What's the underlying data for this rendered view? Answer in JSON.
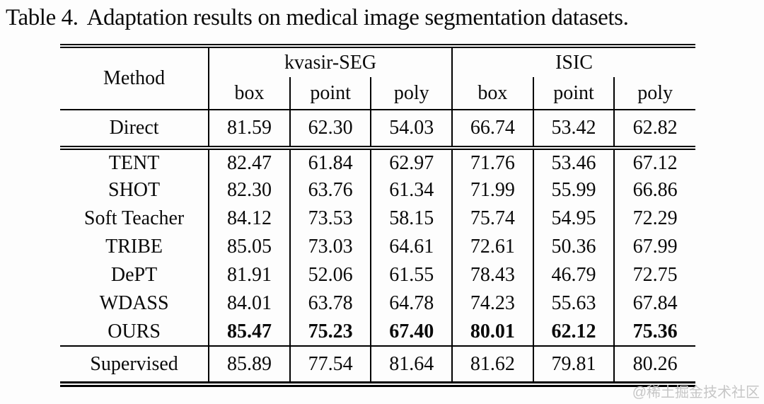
{
  "page": {
    "title_label": "Table 4.",
    "title_caption": "Adaptation results on medical image segmentation datasets.",
    "watermark": "@稀土掘金技术社区"
  },
  "table": {
    "method_header": "Method",
    "groups": [
      {
        "label": "kvasir-SEG",
        "columns": [
          "box",
          "point",
          "poly"
        ]
      },
      {
        "label": "ISIC",
        "columns": [
          "box",
          "point",
          "poly"
        ]
      }
    ],
    "rows": [
      {
        "method": "Direct",
        "values": [
          "81.59",
          "62.30",
          "54.03",
          "66.74",
          "53.42",
          "62.82"
        ]
      },
      {
        "method": "TENT",
        "values": [
          "82.47",
          "61.84",
          "62.97",
          "71.76",
          "53.46",
          "67.12"
        ]
      },
      {
        "method": "SHOT",
        "values": [
          "82.30",
          "63.76",
          "61.34",
          "71.99",
          "55.99",
          "66.86"
        ]
      },
      {
        "method": "Soft Teacher",
        "values": [
          "84.12",
          "73.53",
          "58.15",
          "75.74",
          "54.95",
          "72.29"
        ]
      },
      {
        "method": "TRIBE",
        "values": [
          "85.05",
          "73.03",
          "64.61",
          "72.61",
          "50.36",
          "67.99"
        ]
      },
      {
        "method": "DePT",
        "values": [
          "81.91",
          "52.06",
          "61.55",
          "78.43",
          "46.79",
          "72.75"
        ]
      },
      {
        "method": "WDASS",
        "values": [
          "84.01",
          "63.78",
          "64.78",
          "74.23",
          "55.63",
          "67.84"
        ]
      },
      {
        "method": "OURS",
        "values": [
          "85.47",
          "75.23",
          "67.40",
          "80.01",
          "62.12",
          "75.36"
        ],
        "bold": true
      },
      {
        "method": "Supervised",
        "values": [
          "85.89",
          "77.54",
          "81.64",
          "81.62",
          "79.81",
          "80.26"
        ]
      }
    ]
  },
  "colors": {
    "rule": "#000000",
    "text": "#0a0a0a",
    "watermark": "#c6c6c6",
    "background": "#fdfdfd"
  }
}
